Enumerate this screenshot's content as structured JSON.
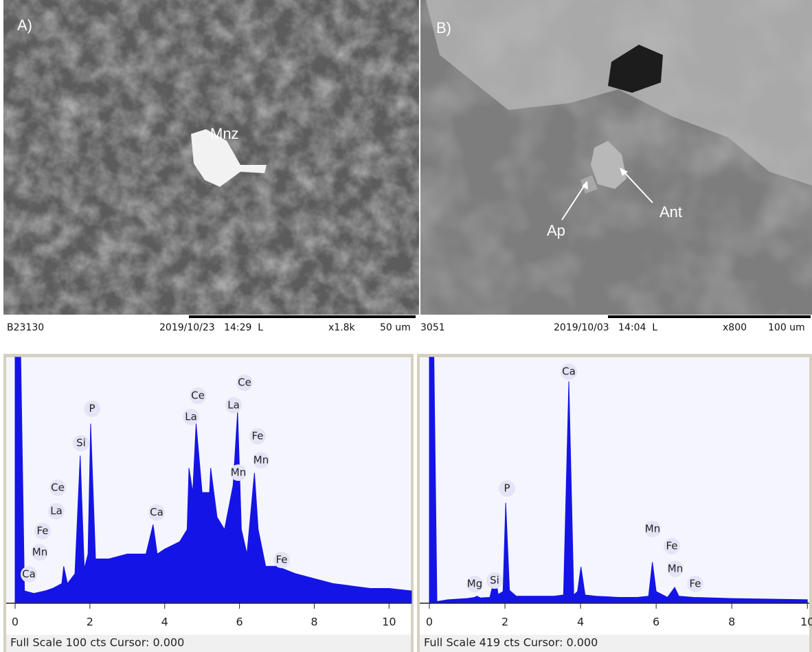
{
  "figure": {
    "panel_a": {
      "label": "A)",
      "annotation": "Mnz",
      "sample": "B23130",
      "datetime": "2019/10/23   14:29  L",
      "magnification": "x1.8k",
      "scale": "50 um"
    },
    "panel_b": {
      "label": "B)",
      "annotations": [
        "Ant",
        "Ap"
      ],
      "sample": "3051",
      "datetime": "2019/10/03   14:04  L",
      "magnification": "x800",
      "scale": "100 um"
    }
  },
  "chart_data": [
    {
      "type": "area",
      "color": "#1414e6",
      "xlim": [
        0,
        10.6
      ],
      "ylim": [
        0,
        100
      ],
      "xticks": [
        0,
        2,
        4,
        6,
        8,
        10
      ],
      "footer": "Full Scale 100 cts Cursor: 0.000",
      "annotations": [
        "Ce",
        "La",
        "Fe",
        "Mn",
        "Ca",
        "Si",
        "P",
        "Ca",
        "Ce",
        "La",
        "Ce",
        "La",
        "Fe",
        "Mn",
        "Mn",
        "Fe"
      ],
      "x": [
        0,
        0.15,
        0.25,
        0.5,
        0.8,
        1.0,
        1.25,
        1.3,
        1.4,
        1.6,
        1.74,
        1.85,
        1.95,
        2.02,
        2.15,
        2.5,
        3.0,
        3.5,
        3.69,
        3.8,
        4.0,
        4.4,
        4.6,
        4.65,
        4.75,
        4.84,
        5.0,
        5.2,
        5.23,
        5.4,
        5.6,
        5.83,
        5.95,
        6.05,
        6.2,
        6.4,
        6.5,
        6.7,
        7.0,
        7.5,
        8.0,
        8.5,
        9.0,
        9.5,
        10.0,
        10.6
      ],
      "values": [
        100,
        100,
        5,
        4,
        5,
        6,
        8,
        15,
        8,
        12,
        60,
        14,
        20,
        73,
        18,
        18,
        20,
        20,
        32,
        20,
        22,
        25,
        30,
        55,
        45,
        73,
        45,
        45,
        55,
        35,
        30,
        48,
        78,
        30,
        20,
        53,
        30,
        15,
        15,
        12,
        10,
        8,
        7,
        6,
        6,
        5
      ]
    },
    {
      "type": "area",
      "color": "#1414e6",
      "xlim": [
        0,
        10.05
      ],
      "ylim": [
        0,
        419
      ],
      "xticks": [
        0,
        2,
        4,
        6,
        8,
        10
      ],
      "footer": "Full Scale 419 cts Cursor: 0.000",
      "annotations": [
        "Ca",
        "P",
        "Si",
        "Mg",
        "Mn",
        "Fe",
        "Mn",
        "Fe"
      ],
      "x": [
        0,
        0.12,
        0.2,
        0.5,
        1.0,
        1.2,
        1.26,
        1.35,
        1.6,
        1.74,
        1.82,
        1.95,
        2.02,
        2.12,
        2.3,
        2.8,
        3.3,
        3.55,
        3.69,
        3.82,
        3.92,
        4.01,
        4.12,
        4.4,
        5.0,
        5.5,
        5.8,
        5.9,
        6.0,
        6.3,
        6.49,
        6.6,
        7.0,
        8.0,
        9.0,
        10.0
      ],
      "values": [
        419,
        419,
        3,
        6,
        8,
        10,
        12,
        9,
        10,
        47,
        15,
        20,
        171,
        22,
        12,
        12,
        12,
        14,
        378,
        14,
        20,
        62,
        14,
        12,
        10,
        10,
        12,
        70,
        20,
        10,
        27,
        12,
        10,
        8,
        7,
        6
      ]
    }
  ]
}
